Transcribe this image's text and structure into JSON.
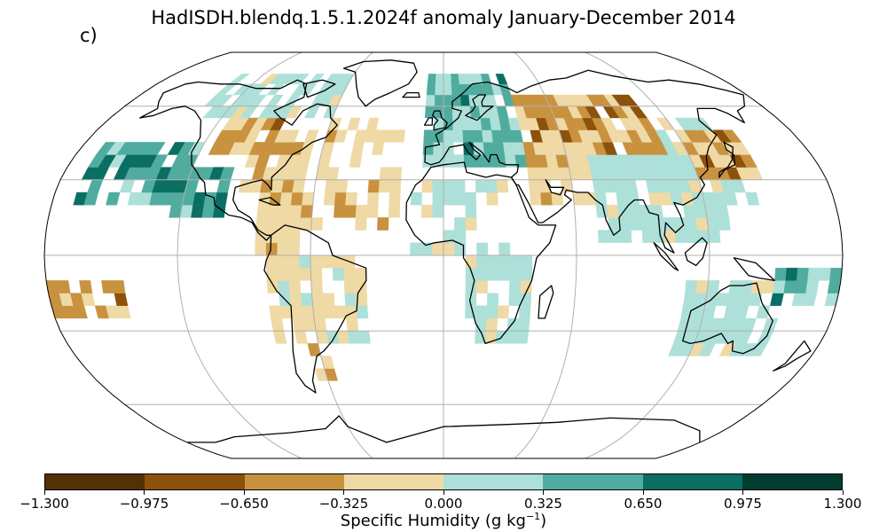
{
  "title": "HadISDH.blendq.1.5.1.2024f anomaly January-December 2014",
  "panel_label": "c)",
  "colorbar": {
    "label_text": "Specific Humidity (g kg",
    "label_exp": "−1",
    "label_close": ")",
    "ticks": [
      "−1.300",
      "−0.975",
      "−0.650",
      "−0.325",
      "0.000",
      "0.325",
      "0.650",
      "0.975",
      "1.300"
    ],
    "colors": [
      "#543005",
      "#8c510a",
      "#c8923f",
      "#efd9a5",
      "#ade0d9",
      "#50ac9f",
      "#0a6e63",
      "#003c30"
    ]
  },
  "map": {
    "projection": "Robinson",
    "grid_lines": true,
    "coastline_color": "#000000",
    "grid_color": "#b0b0b0"
  }
}
